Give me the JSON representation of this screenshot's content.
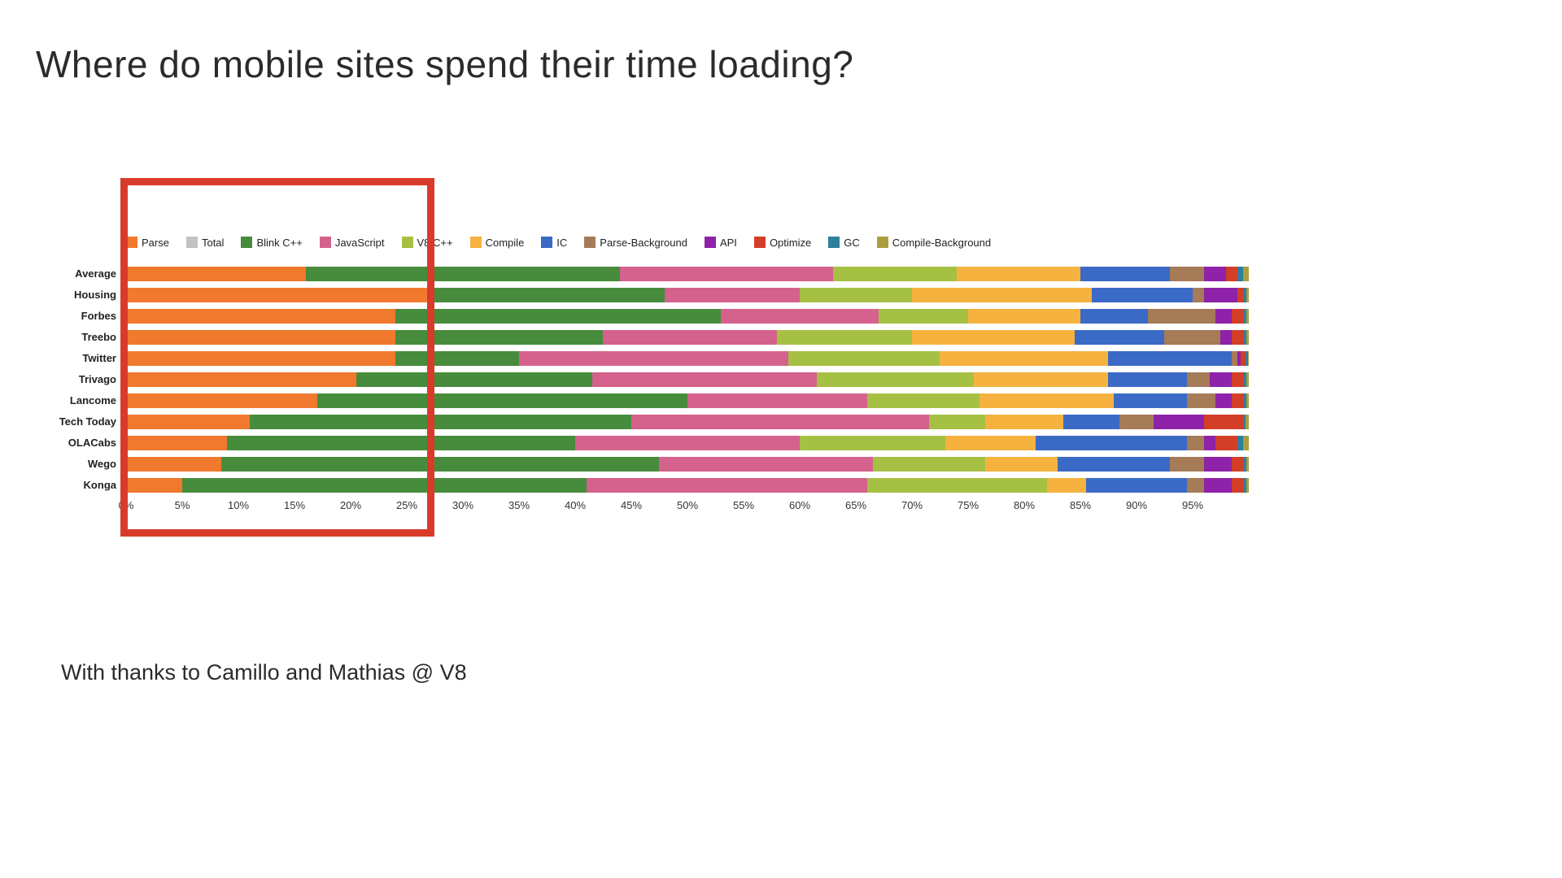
{
  "page": {
    "title": "Where do mobile sites spend their time loading?",
    "footer": "With thanks to Camillo and Mathias @ V8"
  },
  "highlight": {
    "border_color": "#d83b2a",
    "covers_range": "0% to 25%"
  },
  "colors": {
    "Parse": "#f0792e",
    "Total": "#c2c2c2",
    "Blink C++": "#478c3c",
    "JavaScript": "#d5618d",
    "V8 C++": "#a6c044",
    "Compile": "#f5b23f",
    "IC": "#3b6ac6",
    "Parse-Background": "#a57b58",
    "API": "#8e22a8",
    "Optimize": "#d33e28",
    "GC": "#2d7f9e",
    "Compile-Background": "#ab9e3e"
  },
  "chart_data": {
    "type": "bar",
    "stacked": true,
    "orientation": "horizontal",
    "unit": "%",
    "xlim": [
      0,
      100
    ],
    "grid": false,
    "legend_position": "top",
    "legend": [
      "Parse",
      "Total",
      "Blink C++",
      "JavaScript",
      "V8 C++",
      "Compile",
      "IC",
      "Parse-Background",
      "API",
      "Optimize",
      "GC",
      "Compile-Background"
    ],
    "x_ticks": [
      "0%",
      "5%",
      "10%",
      "15%",
      "20%",
      "25%",
      "30%",
      "35%",
      "40%",
      "45%",
      "50%",
      "55%",
      "60%",
      "65%",
      "70%",
      "75%",
      "80%",
      "85%",
      "90%",
      "95%"
    ],
    "categories": [
      "Average",
      "Housing",
      "Forbes",
      "Treebo",
      "Twitter",
      "Trivago",
      "Lancome",
      "Tech Today",
      "OLACabs",
      "Wego",
      "Konga"
    ],
    "series": [
      {
        "name": "Parse",
        "values": [
          16,
          27,
          24,
          24,
          24,
          20.5,
          17,
          11,
          9,
          8.5,
          5
        ]
      },
      {
        "name": "Total",
        "values": [
          0,
          0,
          0,
          0,
          0,
          0,
          0,
          0,
          0,
          0,
          0
        ]
      },
      {
        "name": "Blink C++",
        "values": [
          28,
          21,
          29,
          18.5,
          11,
          21,
          33,
          34,
          31,
          39,
          36
        ]
      },
      {
        "name": "JavaScript",
        "values": [
          19,
          12,
          14,
          15.5,
          24,
          20,
          16,
          26.5,
          20,
          19,
          25
        ]
      },
      {
        "name": "V8 C++",
        "values": [
          11,
          10,
          8,
          12,
          13.5,
          14,
          10,
          5,
          13,
          10,
          16
        ]
      },
      {
        "name": "Compile",
        "values": [
          11,
          16,
          10,
          14.5,
          15,
          12,
          12,
          7,
          8,
          6.5,
          3.5
        ]
      },
      {
        "name": "IC",
        "values": [
          8,
          9,
          6,
          8,
          11,
          7,
          6.5,
          5,
          13.5,
          10,
          9
        ]
      },
      {
        "name": "Parse-Background",
        "values": [
          3,
          1,
          6,
          5,
          0.5,
          2,
          2.5,
          3,
          1.5,
          3,
          1.5
        ]
      },
      {
        "name": "API",
        "values": [
          2,
          3,
          1.5,
          1,
          0.3,
          2,
          1.5,
          4.5,
          1,
          2.5,
          2.5
        ]
      },
      {
        "name": "Optimize",
        "values": [
          1,
          0.5,
          1,
          1,
          0.4,
          1,
          1,
          3.5,
          2,
          1,
          1
        ]
      },
      {
        "name": "GC",
        "values": [
          0.5,
          0.3,
          0.3,
          0.3,
          0.2,
          0.3,
          0.3,
          0.2,
          0.5,
          0.3,
          0.3
        ]
      },
      {
        "name": "Compile-Background",
        "values": [
          0.5,
          0.2,
          0.2,
          0.2,
          0.1,
          0.2,
          0.2,
          0.3,
          0.5,
          0.2,
          0.2
        ]
      }
    ]
  }
}
